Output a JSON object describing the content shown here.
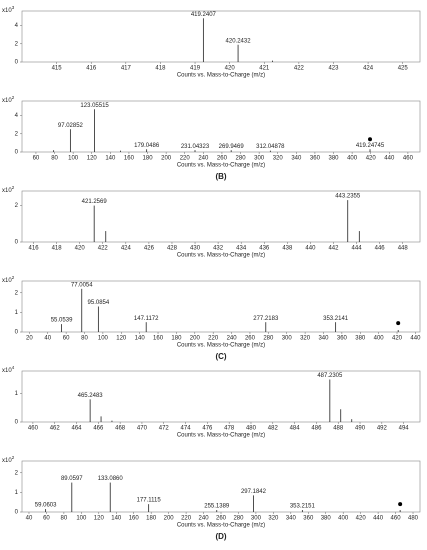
{
  "chart_data": [
    {
      "type": "stem",
      "y_multiplier": {
        "base": "x10",
        "exponent": 3
      },
      "xlabel": "Counts vs. Mass-to-Charge (m/z)",
      "xlim": [
        414,
        425.5
      ],
      "xticks": [
        415,
        416,
        417,
        418,
        419,
        420,
        421,
        422,
        423,
        424,
        425
      ],
      "ylim": [
        0,
        5.6
      ],
      "yticks": [
        0,
        2,
        4
      ],
      "peaks": {
        "x": [
          419.2407,
          420.2432,
          421.24
        ],
        "values": [
          4.8,
          1.9,
          0.15
        ],
        "labels": [
          "419.2407",
          "420.2432",
          null
        ]
      }
    },
    {
      "type": "stem",
      "y_multiplier": {
        "base": "x10",
        "exponent": 2
      },
      "xlabel": "Counts vs. Mass-to-Charge (m/z)",
      "panel_label": "(B)",
      "xlim": [
        45,
        473
      ],
      "xticks": [
        60,
        80,
        100,
        120,
        140,
        160,
        180,
        200,
        220,
        240,
        260,
        280,
        300,
        320,
        340,
        360,
        380,
        400,
        420,
        440,
        460
      ],
      "ylim": [
        0,
        5.6
      ],
      "yticks": [
        0,
        2,
        4
      ],
      "peaks": {
        "x": [
          79.02,
          97.02852,
          123.05515,
          151.04,
          179.0486,
          231.04323,
          269.9469,
          312.04878,
          419.24745
        ],
        "values": [
          0.2,
          2.5,
          4.7,
          0.15,
          0.3,
          0.2,
          0.2,
          0.15,
          0.3
        ],
        "labels": [
          null,
          "97.02852",
          "123.05515",
          null,
          "179.0486",
          "231.04323",
          "269.9469",
          "312.04878",
          "419.24745"
        ]
      },
      "precursor": {
        "x": 419.24745,
        "y": 1.4
      }
    },
    {
      "type": "stem",
      "y_multiplier": {
        "base": "x10",
        "exponent": 2
      },
      "xlabel": "Counts vs. Mass-to-Charge (m/z)",
      "xlim": [
        415,
        449.5
      ],
      "xticks": [
        416,
        418,
        420,
        422,
        424,
        426,
        428,
        430,
        432,
        434,
        436,
        438,
        440,
        442,
        444,
        446,
        448
      ],
      "ylim": [
        0,
        2.8
      ],
      "yticks": [
        0,
        2
      ],
      "peaks": {
        "x": [
          421.2569,
          422.26,
          443.2355,
          444.24
        ],
        "values": [
          2.0,
          0.6,
          2.3,
          0.6
        ],
        "labels": [
          "421.2569",
          null,
          "443.2355",
          null
        ]
      }
    },
    {
      "type": "stem",
      "y_multiplier": {
        "base": "x10",
        "exponent": 2
      },
      "xlabel": "Counts vs. Mass-to-Charge (m/z)",
      "panel_label": "(C)",
      "xlim": [
        12,
        445
      ],
      "xticks": [
        20,
        40,
        60,
        80,
        100,
        120,
        140,
        160,
        180,
        200,
        220,
        240,
        260,
        280,
        300,
        320,
        340,
        360,
        380,
        400,
        420,
        440
      ],
      "ylim": [
        0,
        2.6
      ],
      "yticks": [
        0,
        1,
        2
      ],
      "peaks": {
        "x": [
          55.0539,
          77.0054,
          95.0854,
          147.1172,
          277.2183,
          353.2141,
          421.26
        ],
        "values": [
          0.4,
          2.2,
          1.3,
          0.5,
          0.5,
          0.5,
          0.1
        ],
        "labels": [
          "55.0539",
          "77.0054",
          "95.0854",
          "147.1172",
          "277.2183",
          "353.2141",
          null
        ]
      },
      "precursor": {
        "x": 421.26,
        "y": 0.45
      }
    },
    {
      "type": "stem",
      "y_multiplier": {
        "base": "x10",
        "exponent": 4
      },
      "xlabel": "Counts vs. Mass-to-Charge (m/z)",
      "xlim": [
        459,
        495.5
      ],
      "xticks": [
        460,
        462,
        464,
        466,
        468,
        470,
        472,
        474,
        476,
        478,
        480,
        482,
        484,
        486,
        488,
        490,
        492,
        494
      ],
      "ylim": [
        0,
        1.8
      ],
      "yticks": [
        0,
        1
      ],
      "peaks": {
        "x": [
          465.2483,
          466.25,
          467.25,
          487.2305,
          488.23,
          489.24
        ],
        "values": [
          0.8,
          0.2,
          0.05,
          1.5,
          0.45,
          0.1
        ],
        "labels": [
          "465.2483",
          null,
          null,
          "487.2305",
          null,
          null
        ]
      }
    },
    {
      "type": "stem",
      "y_multiplier": {
        "base": "x10",
        "exponent": 2
      },
      "xlabel": "Counts vs. Mass-to-Charge (m/z)",
      "panel_label": "(D)",
      "xlim": [
        32,
        488
      ],
      "xticks": [
        40,
        60,
        80,
        100,
        120,
        140,
        160,
        180,
        200,
        220,
        240,
        260,
        280,
        300,
        320,
        340,
        360,
        380,
        400,
        420,
        440,
        460,
        480
      ],
      "ylim": [
        0,
        2.6
      ],
      "yticks": [
        0,
        1,
        2
      ],
      "peaks": {
        "x": [
          59.0603,
          89.0597,
          133.086,
          177.1115,
          255.1389,
          297.1842,
          353.2151,
          465.25
        ],
        "values": [
          0.15,
          1.5,
          1.5,
          0.4,
          0.1,
          0.85,
          0.1,
          0.1
        ],
        "labels": [
          "59.0603",
          "89.0597",
          "133.0860",
          "177.1115",
          "255.1389",
          "297.1842",
          "353.2151",
          null
        ]
      },
      "precursor": {
        "x": 465.25,
        "y": 0.4
      }
    }
  ]
}
